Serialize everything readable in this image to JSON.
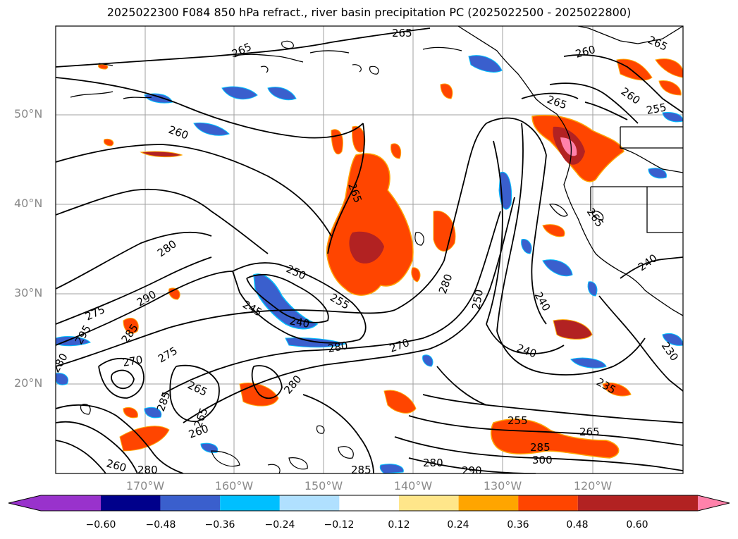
{
  "title": "2025022300 F084 850 hPa refract., river basin precipitation PC (2025022500 - 2025022800)",
  "lat_labels": [
    "50°N",
    "40°N",
    "30°N",
    "20°N"
  ],
  "lon_labels": [
    "170°W",
    "160°W",
    "150°W",
    "140°W",
    "130°W",
    "120°W"
  ],
  "contour_labels": [
    "265",
    "265",
    "260",
    "265",
    "265",
    "260",
    "265",
    "255",
    "260",
    "265",
    "280",
    "290",
    "275",
    "295",
    "285",
    "250",
    "245",
    "240",
    "255",
    "280",
    "270",
    "270",
    "275",
    "265",
    "285",
    "265",
    "260",
    "280",
    "280",
    "280",
    "285",
    "260",
    "250",
    "240",
    "240",
    "235",
    "230",
    "240",
    "255",
    "265",
    "285",
    "300",
    "280",
    "290",
    "280"
  ],
  "colorbar": {
    "ticks": [
      "−0.60",
      "−0.48",
      "−0.36",
      "−0.24",
      "−0.12",
      "0.12",
      "0.24",
      "0.36",
      "0.48",
      "0.60"
    ],
    "colors": [
      "#9932cc",
      "#00008b",
      "#3a5fcd",
      "#00bfff",
      "#b0e0ff",
      "#ffffff",
      "#ffe68a",
      "#ffa500",
      "#ff4500",
      "#b22222",
      "#ff82ab"
    ]
  }
}
